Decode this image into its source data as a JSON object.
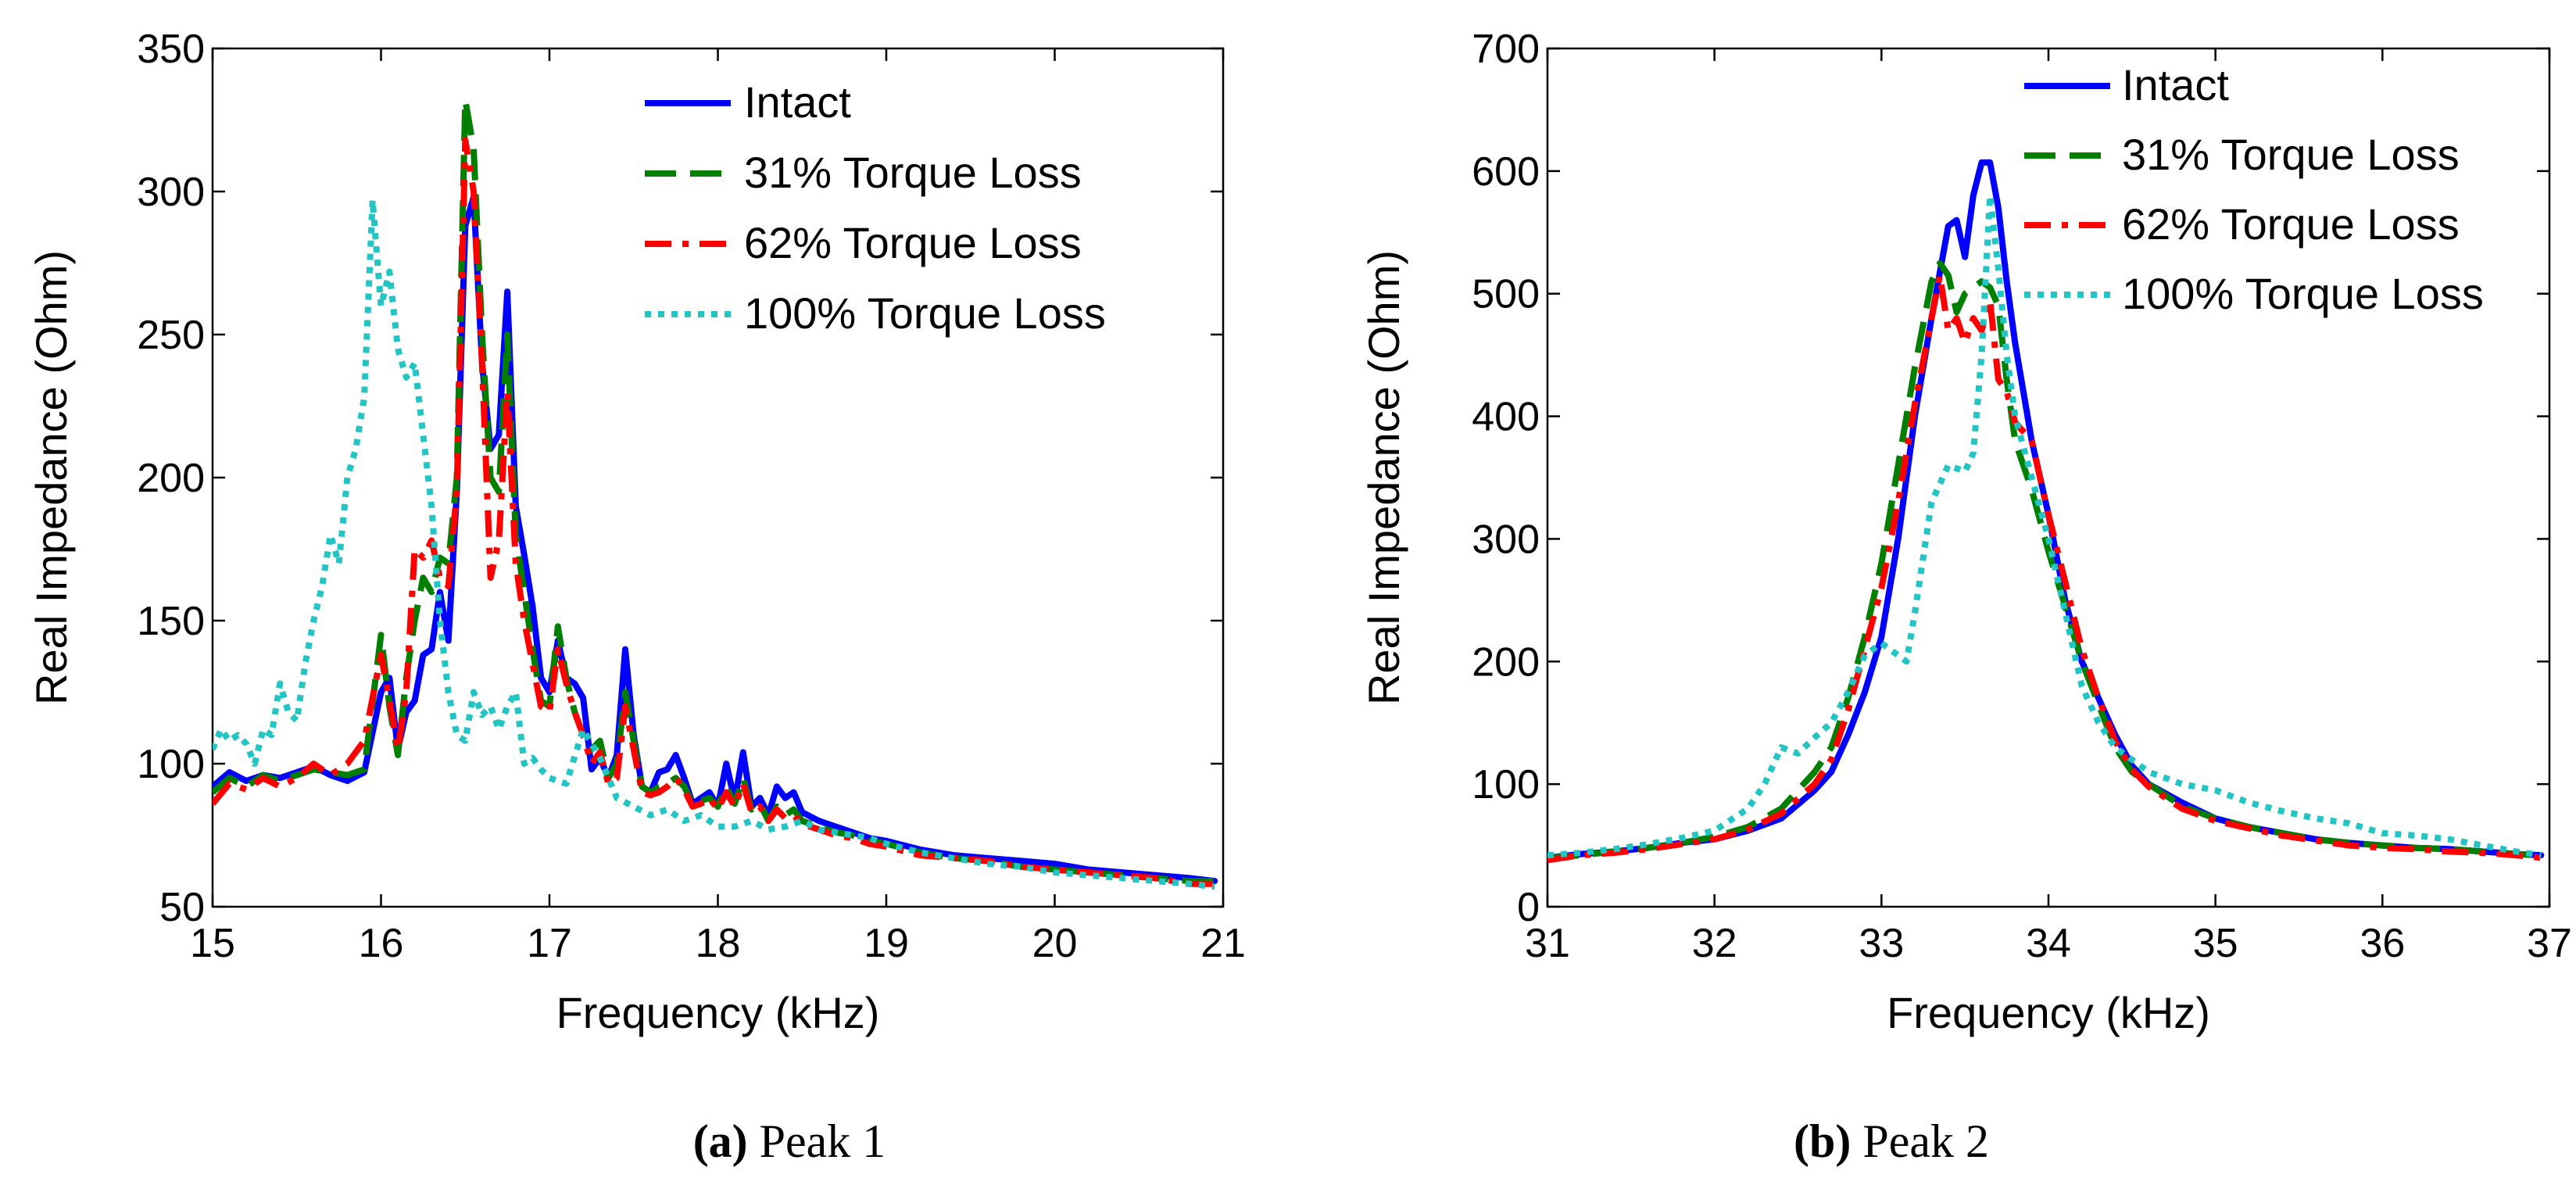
{
  "colors": {
    "intact": "#0000ff",
    "torque31": "#007f00",
    "torque62": "#ff0000",
    "torque100": "#22c4c4",
    "axis": "#000000"
  },
  "chart_data": [
    {
      "type": "line",
      "caption_letter": "(a)",
      "caption_rest": " Peak 1",
      "title": "",
      "xlabel": "Frequency (kHz)",
      "ylabel": "Real Impedance (Ohm)",
      "xlim": [
        15,
        21
      ],
      "ylim": [
        50,
        350
      ],
      "xticks": [
        15,
        16,
        17,
        18,
        19,
        20,
        21
      ],
      "yticks": [
        50,
        100,
        150,
        200,
        250,
        300,
        350
      ],
      "legend_position": "top-right",
      "series": [
        {
          "name": "Intact",
          "style": "solid",
          "color_key": "intact",
          "x": [
            15.0,
            15.1,
            15.2,
            15.3,
            15.4,
            15.5,
            15.6,
            15.7,
            15.8,
            15.9,
            16.0,
            16.05,
            16.1,
            16.15,
            16.2,
            16.25,
            16.3,
            16.35,
            16.4,
            16.45,
            16.5,
            16.55,
            16.6,
            16.65,
            16.7,
            16.75,
            16.8,
            16.85,
            16.9,
            16.95,
            17.0,
            17.05,
            17.1,
            17.15,
            17.2,
            17.25,
            17.3,
            17.35,
            17.4,
            17.45,
            17.5,
            17.55,
            17.6,
            17.65,
            17.7,
            17.75,
            17.8,
            17.85,
            17.9,
            17.95,
            18.0,
            18.05,
            18.1,
            18.15,
            18.2,
            18.25,
            18.3,
            18.35,
            18.4,
            18.45,
            18.5,
            18.6,
            18.7,
            18.8,
            18.9,
            19.0,
            19.2,
            19.4,
            19.6,
            19.8,
            20.0,
            20.2,
            20.4,
            20.6,
            20.8,
            20.95
          ],
          "y": [
            92,
            97,
            94,
            96,
            95,
            97,
            99,
            96,
            94,
            97,
            125,
            130,
            105,
            118,
            122,
            138,
            140,
            160,
            143,
            195,
            288,
            298,
            240,
            210,
            215,
            265,
            190,
            173,
            155,
            130,
            125,
            143,
            130,
            128,
            123,
            98,
            102,
            95,
            103,
            140,
            110,
            92,
            90,
            97,
            98,
            103,
            95,
            86,
            88,
            90,
            85,
            100,
            87,
            104,
            85,
            88,
            82,
            92,
            88,
            90,
            83,
            80,
            78,
            76,
            74,
            73,
            70,
            68,
            67,
            66,
            65,
            63,
            62,
            61,
            60,
            59
          ]
        },
        {
          "name": "31% Torque Loss",
          "style": "dashed",
          "color_key": "torque31",
          "x": [
            15.0,
            15.1,
            15.2,
            15.3,
            15.4,
            15.5,
            15.6,
            15.7,
            15.8,
            15.9,
            16.0,
            16.05,
            16.1,
            16.15,
            16.2,
            16.25,
            16.3,
            16.35,
            16.4,
            16.45,
            16.5,
            16.55,
            16.6,
            16.65,
            16.7,
            16.75,
            16.8,
            16.85,
            16.9,
            16.95,
            17.0,
            17.05,
            17.1,
            17.15,
            17.2,
            17.25,
            17.3,
            17.35,
            17.4,
            17.45,
            17.5,
            17.55,
            17.6,
            17.65,
            17.7,
            17.75,
            17.8,
            17.85,
            17.9,
            17.95,
            18.0,
            18.05,
            18.1,
            18.15,
            18.2,
            18.25,
            18.3,
            18.35,
            18.4,
            18.45,
            18.5,
            18.6,
            18.7,
            18.8,
            18.9,
            19.0,
            19.2,
            19.4,
            19.6,
            19.8,
            20.0,
            20.2,
            20.4,
            20.6,
            20.8,
            20.95
          ],
          "y": [
            90,
            95,
            92,
            96,
            94,
            96,
            98,
            97,
            96,
            98,
            145,
            120,
            103,
            130,
            150,
            165,
            160,
            172,
            170,
            200,
            332,
            315,
            250,
            200,
            195,
            250,
            180,
            160,
            140,
            122,
            120,
            148,
            130,
            118,
            110,
            105,
            108,
            95,
            100,
            125,
            108,
            92,
            90,
            92,
            93,
            95,
            92,
            86,
            87,
            88,
            85,
            92,
            86,
            95,
            84,
            86,
            80,
            85,
            82,
            84,
            80,
            78,
            76,
            75,
            73,
            72,
            69,
            67,
            66,
            64,
            63,
            62,
            61,
            60,
            59,
            59
          ]
        },
        {
          "name": "62% Torque Loss",
          "style": "dashdot",
          "color_key": "torque62",
          "x": [
            15.0,
            15.1,
            15.2,
            15.3,
            15.4,
            15.5,
            15.6,
            15.7,
            15.8,
            15.9,
            16.0,
            16.05,
            16.1,
            16.15,
            16.2,
            16.25,
            16.3,
            16.35,
            16.4,
            16.45,
            16.5,
            16.55,
            16.6,
            16.65,
            16.7,
            16.75,
            16.8,
            16.85,
            16.9,
            16.95,
            17.0,
            17.05,
            17.1,
            17.15,
            17.2,
            17.25,
            17.3,
            17.35,
            17.4,
            17.45,
            17.5,
            17.55,
            17.6,
            17.65,
            17.7,
            17.75,
            17.8,
            17.85,
            17.9,
            17.95,
            18.0,
            18.05,
            18.1,
            18.15,
            18.2,
            18.25,
            18.3,
            18.35,
            18.4,
            18.45,
            18.5,
            18.6,
            18.7,
            18.8,
            18.9,
            19.0,
            19.2,
            19.4,
            19.6,
            19.8,
            20.0,
            20.2,
            20.4,
            20.6,
            20.8,
            20.95
          ],
          "y": [
            86,
            93,
            91,
            95,
            92,
            95,
            100,
            96,
            100,
            108,
            138,
            122,
            105,
            125,
            175,
            172,
            178,
            165,
            162,
            195,
            318,
            300,
            240,
            165,
            178,
            230,
            170,
            150,
            135,
            120,
            118,
            140,
            128,
            118,
            110,
            100,
            104,
            93,
            95,
            120,
            105,
            90,
            89,
            90,
            92,
            95,
            91,
            85,
            86,
            88,
            84,
            90,
            85,
            93,
            83,
            85,
            80,
            84,
            81,
            82,
            79,
            77,
            75,
            74,
            72,
            71,
            68,
            67,
            66,
            64,
            63,
            62,
            61,
            60,
            58,
            58
          ]
        },
        {
          "name": "100% Torque Loss",
          "style": "dotted",
          "color_key": "torque100",
          "x": [
            15.0,
            15.05,
            15.1,
            15.15,
            15.2,
            15.25,
            15.3,
            15.35,
            15.4,
            15.45,
            15.5,
            15.55,
            15.6,
            15.65,
            15.7,
            15.75,
            15.8,
            15.85,
            15.9,
            15.95,
            16.0,
            16.05,
            16.1,
            16.15,
            16.2,
            16.25,
            16.3,
            16.35,
            16.4,
            16.45,
            16.5,
            16.55,
            16.6,
            16.65,
            16.7,
            16.75,
            16.8,
            16.85,
            16.9,
            16.95,
            17.0,
            17.1,
            17.2,
            17.3,
            17.4,
            17.5,
            17.6,
            17.7,
            17.8,
            17.9,
            18.0,
            18.1,
            18.2,
            18.3,
            18.4,
            18.5,
            18.6,
            18.7,
            18.8,
            18.9,
            19.0,
            19.2,
            19.4,
            19.6,
            19.8,
            20.0,
            20.2,
            20.4,
            20.6,
            20.8,
            20.95
          ],
          "y": [
            105,
            112,
            108,
            110,
            107,
            100,
            112,
            110,
            128,
            118,
            115,
            135,
            150,
            162,
            180,
            170,
            200,
            210,
            228,
            297,
            260,
            272,
            245,
            235,
            240,
            215,
            190,
            150,
            125,
            110,
            108,
            125,
            117,
            120,
            112,
            120,
            125,
            100,
            102,
            98,
            95,
            93,
            112,
            102,
            88,
            85,
            82,
            84,
            80,
            82,
            78,
            78,
            80,
            77,
            78,
            80,
            77,
            76,
            75,
            74,
            72,
            69,
            67,
            65,
            64,
            62,
            61,
            60,
            59,
            58,
            57
          ]
        }
      ]
    },
    {
      "type": "line",
      "caption_letter": "(b)",
      "caption_rest": " Peak 2",
      "title": "",
      "xlabel": "Frequency (kHz)",
      "ylabel": "Real Impedance (Ohm)",
      "xlim": [
        31,
        37
      ],
      "ylim": [
        0,
        700
      ],
      "xticks": [
        31,
        32,
        33,
        34,
        35,
        36,
        37
      ],
      "yticks": [
        0,
        100,
        200,
        300,
        400,
        500,
        600,
        700
      ],
      "legend_position": "top-right",
      "series": [
        {
          "name": "Intact",
          "style": "solid",
          "color_key": "intact",
          "x": [
            31.0,
            31.2,
            31.4,
            31.6,
            31.8,
            32.0,
            32.2,
            32.4,
            32.6,
            32.7,
            32.8,
            32.9,
            33.0,
            33.1,
            33.2,
            33.3,
            33.4,
            33.45,
            33.5,
            33.55,
            33.6,
            33.65,
            33.7,
            33.75,
            33.8,
            33.9,
            34.0,
            34.1,
            34.2,
            34.3,
            34.4,
            34.5,
            34.6,
            34.8,
            35.0,
            35.2,
            35.4,
            35.6,
            35.8,
            36.0,
            36.2,
            36.4,
            36.6,
            36.8,
            36.95
          ],
          "y": [
            40,
            43,
            45,
            48,
            52,
            55,
            62,
            72,
            95,
            110,
            140,
            175,
            220,
            300,
            400,
            480,
            555,
            560,
            530,
            580,
            607,
            607,
            570,
            510,
            460,
            380,
            320,
            250,
            200,
            170,
            140,
            115,
            100,
            85,
            72,
            65,
            60,
            55,
            52,
            50,
            48,
            47,
            45,
            43,
            42
          ]
        },
        {
          "name": "31% Torque Loss",
          "style": "dashed",
          "color_key": "torque31",
          "x": [
            31.0,
            31.2,
            31.4,
            31.6,
            31.8,
            32.0,
            32.2,
            32.4,
            32.6,
            32.7,
            32.8,
            32.9,
            33.0,
            33.1,
            33.2,
            33.3,
            33.35,
            33.4,
            33.45,
            33.5,
            33.55,
            33.6,
            33.65,
            33.7,
            33.75,
            33.8,
            33.9,
            34.0,
            34.1,
            34.2,
            34.3,
            34.4,
            34.5,
            34.6,
            34.8,
            35.0,
            35.2,
            35.4,
            35.6,
            35.8,
            36.0,
            36.2,
            36.4,
            36.6,
            36.8,
            36.95
          ],
          "y": [
            40,
            42,
            45,
            48,
            52,
            57,
            65,
            80,
            110,
            130,
            170,
            220,
            280,
            360,
            440,
            510,
            525,
            515,
            485,
            500,
            505,
            510,
            505,
            490,
            430,
            380,
            340,
            290,
            245,
            200,
            165,
            130,
            110,
            100,
            82,
            72,
            65,
            60,
            55,
            52,
            50,
            48,
            47,
            45,
            43,
            42
          ]
        },
        {
          "name": "62% Torque Loss",
          "style": "dashdot",
          "color_key": "torque62",
          "x": [
            31.0,
            31.2,
            31.4,
            31.6,
            31.8,
            32.0,
            32.2,
            32.4,
            32.6,
            32.7,
            32.8,
            32.9,
            33.0,
            33.1,
            33.2,
            33.3,
            33.35,
            33.4,
            33.45,
            33.5,
            33.55,
            33.6,
            33.65,
            33.7,
            33.75,
            33.8,
            33.9,
            34.0,
            34.1,
            34.2,
            34.3,
            34.4,
            34.5,
            34.6,
            34.8,
            35.0,
            35.2,
            35.4,
            35.6,
            35.8,
            36.0,
            36.2,
            36.4,
            36.6,
            36.8,
            36.95
          ],
          "y": [
            38,
            42,
            44,
            47,
            51,
            55,
            63,
            76,
            100,
            120,
            160,
            210,
            260,
            330,
            410,
            480,
            515,
            470,
            480,
            460,
            480,
            470,
            495,
            430,
            420,
            395,
            380,
            320,
            265,
            210,
            170,
            135,
            112,
            98,
            80,
            70,
            64,
            58,
            54,
            50,
            48,
            47,
            45,
            44,
            42,
            40
          ]
        },
        {
          "name": "100% Torque Loss",
          "style": "dotted",
          "color_key": "torque100",
          "x": [
            31.0,
            31.2,
            31.4,
            31.6,
            31.8,
            32.0,
            32.2,
            32.3,
            32.4,
            32.5,
            32.6,
            32.7,
            32.8,
            32.9,
            33.0,
            33.1,
            33.15,
            33.2,
            33.3,
            33.4,
            33.5,
            33.55,
            33.6,
            33.65,
            33.7,
            33.75,
            33.8,
            33.9,
            34.0,
            34.1,
            34.2,
            34.3,
            34.4,
            34.6,
            34.8,
            35.0,
            35.2,
            35.4,
            35.6,
            35.8,
            36.0,
            36.2,
            36.4,
            36.6,
            36.8,
            36.95
          ],
          "y": [
            42,
            44,
            47,
            51,
            56,
            62,
            80,
            100,
            130,
            125,
            138,
            150,
            175,
            205,
            215,
            205,
            200,
            240,
            330,
            360,
            355,
            370,
            450,
            580,
            520,
            450,
            400,
            350,
            300,
            240,
            180,
            150,
            130,
            110,
            100,
            95,
            85,
            78,
            72,
            68,
            60,
            58,
            55,
            50,
            45,
            42
          ]
        }
      ]
    }
  ]
}
